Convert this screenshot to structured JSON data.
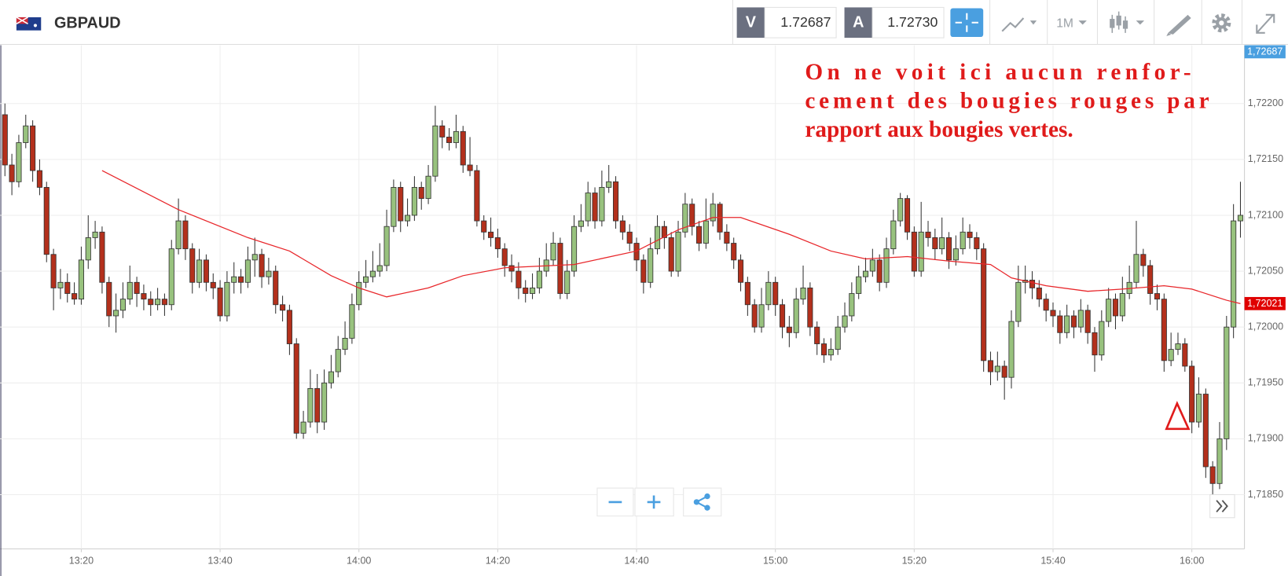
{
  "header": {
    "symbol": "GBPAUD",
    "bid_letter": "V",
    "bid": "1.72687",
    "ask_letter": "A",
    "ask": "1.72730",
    "timeframe": "1M"
  },
  "chart_data": {
    "type": "candlestick",
    "annotation": [
      "On ne voit ici aucun renfor-",
      "cement des bougies rouges par",
      "rapport aux bougies vertes."
    ],
    "up_color": "#98c27e",
    "down_color": "#b3301c",
    "ylim": [
      1.718015,
      1.722522
    ],
    "yticks": [
      {
        "value": 1.7185,
        "label": "1,71850"
      },
      {
        "value": 1.719,
        "label": "1,71900"
      },
      {
        "value": 1.7195,
        "label": "1,71950"
      },
      {
        "value": 1.72,
        "label": "1,72000"
      },
      {
        "value": 1.7205,
        "label": "1,72050"
      },
      {
        "value": 1.721,
        "label": "1,72100"
      },
      {
        "value": 1.7215,
        "label": "1,72150"
      },
      {
        "value": 1.722,
        "label": "1,72200"
      }
    ],
    "xticks": [
      "13:20",
      "13:40",
      "14:00",
      "14:20",
      "14:40",
      "15:00",
      "15:20",
      "15:40",
      "16:00"
    ],
    "grid": true,
    "bid_tag": "1,72687",
    "last_tag": {
      "value": 1.72021,
      "label": "1,72021"
    },
    "x": [
      "13:09",
      "13:10",
      "13:11",
      "13:12",
      "13:13",
      "13:14",
      "13:15",
      "13:16",
      "13:17",
      "13:18",
      "13:19",
      "13:20",
      "13:21",
      "13:22",
      "13:23",
      "13:24",
      "13:25",
      "13:26",
      "13:27",
      "13:28",
      "13:29",
      "13:30",
      "13:31",
      "13:32",
      "13:33",
      "13:34",
      "13:35",
      "13:36",
      "13:37",
      "13:38",
      "13:39",
      "13:40",
      "13:41",
      "13:42",
      "13:43",
      "13:44",
      "13:45",
      "13:46",
      "13:47",
      "13:48",
      "13:49",
      "13:50",
      "13:51",
      "13:52",
      "13:53",
      "13:54",
      "13:55",
      "13:56",
      "13:57",
      "13:58",
      "13:59",
      "14:00",
      "14:01",
      "14:02",
      "14:03",
      "14:04",
      "14:05",
      "14:06",
      "14:07",
      "14:08",
      "14:09",
      "14:10",
      "14:11",
      "14:12",
      "14:13",
      "14:14",
      "14:15",
      "14:16",
      "14:17",
      "14:18",
      "14:19",
      "14:20",
      "14:21",
      "14:22",
      "14:23",
      "14:24",
      "14:25",
      "14:26",
      "14:27",
      "14:28",
      "14:29",
      "14:30",
      "14:31",
      "14:32",
      "14:33",
      "14:34",
      "14:35",
      "14:36",
      "14:37",
      "14:38",
      "14:39",
      "14:40",
      "14:41",
      "14:42",
      "14:43",
      "14:44",
      "14:45",
      "14:46",
      "14:47",
      "14:48",
      "14:49",
      "14:50",
      "14:51",
      "14:52",
      "14:53",
      "14:54",
      "14:55",
      "14:56",
      "14:57",
      "14:58",
      "14:59",
      "15:00",
      "15:01",
      "15:02",
      "15:03",
      "15:04",
      "15:05",
      "15:06",
      "15:07",
      "15:08",
      "15:09",
      "15:10",
      "15:11",
      "15:12",
      "15:13",
      "15:14",
      "15:15",
      "15:16",
      "15:17",
      "15:18",
      "15:19",
      "15:20",
      "15:21",
      "15:22",
      "15:23",
      "15:24",
      "15:25",
      "15:26",
      "15:27",
      "15:28",
      "15:29",
      "15:30",
      "15:31",
      "15:32",
      "15:33",
      "15:34",
      "15:35",
      "15:36",
      "15:37",
      "15:38",
      "15:39",
      "15:40",
      "15:41",
      "15:42",
      "15:43",
      "15:44",
      "15:45",
      "15:46",
      "15:47",
      "15:48",
      "15:49",
      "15:50",
      "15:51",
      "15:52",
      "15:53",
      "15:54",
      "15:55",
      "15:56",
      "15:57",
      "15:58",
      "15:59",
      "16:00",
      "16:01",
      "16:02",
      "16:03",
      "16:04",
      "16:05",
      "16:06",
      "16:07"
    ],
    "ohlc": [
      [
        1.7219,
        1.722,
        1.72135,
        1.72145
      ],
      [
        1.72145,
        1.72155,
        1.72118,
        1.7213
      ],
      [
        1.7213,
        1.72172,
        1.72125,
        1.72165
      ],
      [
        1.72165,
        1.7219,
        1.7216,
        1.7218
      ],
      [
        1.7218,
        1.72185,
        1.7213,
        1.7214
      ],
      [
        1.7214,
        1.7215,
        1.72118,
        1.72125
      ],
      [
        1.72125,
        1.7213,
        1.72058,
        1.72065
      ],
      [
        1.72065,
        1.7207,
        1.72015,
        1.72035
      ],
      [
        1.72035,
        1.72052,
        1.72025,
        1.7204
      ],
      [
        1.7204,
        1.72048,
        1.72022,
        1.7203
      ],
      [
        1.7203,
        1.7204,
        1.7202,
        1.72025
      ],
      [
        1.72025,
        1.72072,
        1.7202,
        1.7206
      ],
      [
        1.7206,
        1.721,
        1.72052,
        1.7208
      ],
      [
        1.7208,
        1.72095,
        1.7207,
        1.72085
      ],
      [
        1.72085,
        1.7209,
        1.7203,
        1.7204
      ],
      [
        1.7204,
        1.72045,
        1.72,
        1.7201
      ],
      [
        1.7201,
        1.7203,
        1.71995,
        1.72015
      ],
      [
        1.72015,
        1.7204,
        1.72008,
        1.72025
      ],
      [
        1.72025,
        1.72055,
        1.7202,
        1.7204
      ],
      [
        1.7204,
        1.72045,
        1.72018,
        1.7203
      ],
      [
        1.7203,
        1.72038,
        1.72015,
        1.72025
      ],
      [
        1.72025,
        1.72032,
        1.7201,
        1.7202
      ],
      [
        1.7202,
        1.72035,
        1.72015,
        1.72025
      ],
      [
        1.72025,
        1.7203,
        1.7201,
        1.7202
      ],
      [
        1.7202,
        1.72078,
        1.72015,
        1.7207
      ],
      [
        1.7207,
        1.72115,
        1.72065,
        1.72095
      ],
      [
        1.72095,
        1.721,
        1.7206,
        1.7207
      ],
      [
        1.7207,
        1.72075,
        1.7203,
        1.7204
      ],
      [
        1.7204,
        1.7207,
        1.72035,
        1.7206
      ],
      [
        1.7206,
        1.72065,
        1.72032,
        1.7204
      ],
      [
        1.7204,
        1.72048,
        1.72025,
        1.72035
      ],
      [
        1.72035,
        1.72042,
        1.72005,
        1.7201
      ],
      [
        1.7201,
        1.7205,
        1.72005,
        1.7204
      ],
      [
        1.7204,
        1.72058,
        1.7203,
        1.72045
      ],
      [
        1.72045,
        1.72052,
        1.7203,
        1.7204
      ],
      [
        1.7204,
        1.72072,
        1.72035,
        1.7206
      ],
      [
        1.7206,
        1.7208,
        1.72045,
        1.72065
      ],
      [
        1.72065,
        1.7207,
        1.72035,
        1.72045
      ],
      [
        1.72045,
        1.72062,
        1.72038,
        1.7205
      ],
      [
        1.7205,
        1.72055,
        1.72012,
        1.7202
      ],
      [
        1.7202,
        1.72028,
        1.72005,
        1.72015
      ],
      [
        1.72015,
        1.7202,
        1.71975,
        1.71985
      ],
      [
        1.71985,
        1.7199,
        1.719,
        1.71905
      ],
      [
        1.71905,
        1.71925,
        1.719,
        1.71915
      ],
      [
        1.71915,
        1.71962,
        1.7191,
        1.71945
      ],
      [
        1.71945,
        1.71958,
        1.71905,
        1.71915
      ],
      [
        1.71915,
        1.71962,
        1.71908,
        1.7195
      ],
      [
        1.7195,
        1.71975,
        1.71945,
        1.7196
      ],
      [
        1.7196,
        1.71992,
        1.71955,
        1.7198
      ],
      [
        1.7198,
        1.72005,
        1.71975,
        1.7199
      ],
      [
        1.7199,
        1.7203,
        1.71985,
        1.7202
      ],
      [
        1.7202,
        1.7205,
        1.72015,
        1.7204
      ],
      [
        1.7204,
        1.7206,
        1.72035,
        1.72045
      ],
      [
        1.72045,
        1.72068,
        1.7204,
        1.7205
      ],
      [
        1.7205,
        1.72075,
        1.72045,
        1.72055
      ],
      [
        1.72055,
        1.72105,
        1.7205,
        1.7209
      ],
      [
        1.7209,
        1.72132,
        1.72085,
        1.72125
      ],
      [
        1.72125,
        1.7213,
        1.72085,
        1.72095
      ],
      [
        1.72095,
        1.72115,
        1.7209,
        1.721
      ],
      [
        1.721,
        1.72135,
        1.72095,
        1.72125
      ],
      [
        1.72125,
        1.7213,
        1.72105,
        1.72115
      ],
      [
        1.72115,
        1.72145,
        1.7211,
        1.72135
      ],
      [
        1.72135,
        1.72198,
        1.7213,
        1.7218
      ],
      [
        1.7218,
        1.72185,
        1.7216,
        1.7217
      ],
      [
        1.7217,
        1.72178,
        1.72158,
        1.72165
      ],
      [
        1.72165,
        1.7219,
        1.7216,
        1.72175
      ],
      [
        1.72175,
        1.7218,
        1.72138,
        1.72145
      ],
      [
        1.72145,
        1.7217,
        1.72135,
        1.7214
      ],
      [
        1.7214,
        1.72145,
        1.7209,
        1.72095
      ],
      [
        1.72095,
        1.721,
        1.72078,
        1.72085
      ],
      [
        1.72085,
        1.72098,
        1.72072,
        1.7208
      ],
      [
        1.7208,
        1.72088,
        1.72062,
        1.7207
      ],
      [
        1.7207,
        1.72075,
        1.72045,
        1.72055
      ],
      [
        1.72055,
        1.72065,
        1.7204,
        1.7205
      ],
      [
        1.7205,
        1.72058,
        1.72025,
        1.72035
      ],
      [
        1.72035,
        1.72042,
        1.72022,
        1.7203
      ],
      [
        1.7203,
        1.72048,
        1.72025,
        1.72035
      ],
      [
        1.72035,
        1.72062,
        1.7203,
        1.7205
      ],
      [
        1.7205,
        1.72075,
        1.72045,
        1.7206
      ],
      [
        1.7206,
        1.72085,
        1.72055,
        1.72075
      ],
      [
        1.72075,
        1.7208,
        1.72025,
        1.7203
      ],
      [
        1.7203,
        1.7206,
        1.72025,
        1.7205
      ],
      [
        1.7205,
        1.721,
        1.72045,
        1.7209
      ],
      [
        1.7209,
        1.7211,
        1.72085,
        1.72095
      ],
      [
        1.72095,
        1.7213,
        1.7209,
        1.7212
      ],
      [
        1.7212,
        1.72125,
        1.72088,
        1.72095
      ],
      [
        1.72095,
        1.7214,
        1.7209,
        1.72125
      ],
      [
        1.72125,
        1.72145,
        1.7212,
        1.7213
      ],
      [
        1.7213,
        1.72135,
        1.72088,
        1.72095
      ],
      [
        1.72095,
        1.721,
        1.72078,
        1.72085
      ],
      [
        1.72085,
        1.72092,
        1.72068,
        1.72075
      ],
      [
        1.72075,
        1.7208,
        1.7205,
        1.7206
      ],
      [
        1.7206,
        1.72065,
        1.7203,
        1.7204
      ],
      [
        1.7204,
        1.7208,
        1.72035,
        1.7207
      ],
      [
        1.7207,
        1.721,
        1.72065,
        1.7209
      ],
      [
        1.7209,
        1.72095,
        1.7207,
        1.7208
      ],
      [
        1.7208,
        1.72085,
        1.72045,
        1.7205
      ],
      [
        1.7205,
        1.72095,
        1.72045,
        1.72085
      ],
      [
        1.72085,
        1.7212,
        1.7208,
        1.7211
      ],
      [
        1.7211,
        1.72115,
        1.72082,
        1.7209
      ],
      [
        1.7209,
        1.72095,
        1.72068,
        1.72075
      ],
      [
        1.72075,
        1.72115,
        1.7207,
        1.72095
      ],
      [
        1.72095,
        1.7212,
        1.7209,
        1.7211
      ],
      [
        1.7211,
        1.72112,
        1.72078,
        1.72085
      ],
      [
        1.72085,
        1.72092,
        1.72068,
        1.72075
      ],
      [
        1.72075,
        1.7208,
        1.72052,
        1.7206
      ],
      [
        1.7206,
        1.72065,
        1.72032,
        1.7204
      ],
      [
        1.7204,
        1.72045,
        1.7201,
        1.7202
      ],
      [
        1.7202,
        1.72025,
        1.71995,
        1.72
      ],
      [
        1.72,
        1.72035,
        1.71995,
        1.7202
      ],
      [
        1.7202,
        1.7205,
        1.72015,
        1.7204
      ],
      [
        1.7204,
        1.72045,
        1.7201,
        1.7202
      ],
      [
        1.7202,
        1.72025,
        1.7199,
        1.72
      ],
      [
        1.72,
        1.7201,
        1.71982,
        1.71995
      ],
      [
        1.71995,
        1.72035,
        1.7199,
        1.72025
      ],
      [
        1.72025,
        1.72055,
        1.7202,
        1.72035
      ],
      [
        1.72035,
        1.7204,
        1.71992,
        1.72
      ],
      [
        1.72,
        1.72005,
        1.71975,
        1.71985
      ],
      [
        1.71985,
        1.7199,
        1.71968,
        1.71975
      ],
      [
        1.71975,
        1.7199,
        1.7197,
        1.7198
      ],
      [
        1.7198,
        1.7201,
        1.71975,
        1.72
      ],
      [
        1.72,
        1.72022,
        1.71995,
        1.7201
      ],
      [
        1.7201,
        1.7204,
        1.72005,
        1.7203
      ],
      [
        1.7203,
        1.72055,
        1.72025,
        1.72045
      ],
      [
        1.72045,
        1.72062,
        1.7204,
        1.7205
      ],
      [
        1.7205,
        1.7207,
        1.72045,
        1.7206
      ],
      [
        1.7206,
        1.72065,
        1.72032,
        1.7204
      ],
      [
        1.7204,
        1.7208,
        1.72035,
        1.7207
      ],
      [
        1.7207,
        1.72105,
        1.72065,
        1.72095
      ],
      [
        1.72095,
        1.7212,
        1.7209,
        1.72115
      ],
      [
        1.72115,
        1.72118,
        1.72078,
        1.72085
      ],
      [
        1.72085,
        1.7209,
        1.72045,
        1.7205
      ],
      [
        1.7205,
        1.72112,
        1.72045,
        1.72085
      ],
      [
        1.72085,
        1.72095,
        1.72072,
        1.7208
      ],
      [
        1.7208,
        1.72088,
        1.7206,
        1.7207
      ],
      [
        1.7207,
        1.72098,
        1.72065,
        1.7208
      ],
      [
        1.7208,
        1.72085,
        1.72052,
        1.7206
      ],
      [
        1.7206,
        1.72082,
        1.72055,
        1.7207
      ],
      [
        1.7207,
        1.72098,
        1.72065,
        1.72085
      ],
      [
        1.72085,
        1.72092,
        1.7207,
        1.7208
      ],
      [
        1.7208,
        1.72085,
        1.7206,
        1.7207
      ],
      [
        1.7207,
        1.72075,
        1.7196,
        1.7197
      ],
      [
        1.7197,
        1.71978,
        1.71948,
        1.7196
      ],
      [
        1.7196,
        1.71978,
        1.71952,
        1.71965
      ],
      [
        1.71965,
        1.7197,
        1.71935,
        1.71955
      ],
      [
        1.71955,
        1.72015,
        1.71945,
        1.72005
      ],
      [
        1.72005,
        1.72055,
        1.72,
        1.7204
      ],
      [
        1.7204,
        1.72055,
        1.7203,
        1.72042
      ],
      [
        1.72042,
        1.7205,
        1.72025,
        1.72035
      ],
      [
        1.72035,
        1.72042,
        1.72018,
        1.72025
      ],
      [
        1.72025,
        1.7203,
        1.72005,
        1.72015
      ],
      [
        1.72015,
        1.72022,
        1.72,
        1.7201
      ],
      [
        1.7201,
        1.72015,
        1.71985,
        1.71995
      ],
      [
        1.71995,
        1.7202,
        1.7199,
        1.7201
      ],
      [
        1.7201,
        1.72015,
        1.7199,
        1.72
      ],
      [
        1.72,
        1.72025,
        1.71995,
        1.72015
      ],
      [
        1.72015,
        1.7202,
        1.71985,
        1.71995
      ],
      [
        1.71995,
        1.72,
        1.7196,
        1.71975
      ],
      [
        1.71975,
        1.72015,
        1.7197,
        1.72005
      ],
      [
        1.72005,
        1.72035,
        1.72,
        1.72025
      ],
      [
        1.72025,
        1.7203,
        1.71998,
        1.7201
      ],
      [
        1.7201,
        1.72045,
        1.72005,
        1.7203
      ],
      [
        1.7203,
        1.72055,
        1.72025,
        1.7204
      ],
      [
        1.7204,
        1.72095,
        1.72035,
        1.72065
      ],
      [
        1.72065,
        1.7207,
        1.72045,
        1.72055
      ],
      [
        1.72055,
        1.7206,
        1.7202,
        1.7203
      ],
      [
        1.7203,
        1.72038,
        1.72015,
        1.72025
      ],
      [
        1.72025,
        1.7203,
        1.7196,
        1.7197
      ],
      [
        1.7197,
        1.71995,
        1.71965,
        1.7198
      ],
      [
        1.7198,
        1.71995,
        1.71975,
        1.71985
      ],
      [
        1.71985,
        1.7199,
        1.7196,
        1.71965
      ],
      [
        1.71965,
        1.7197,
        1.71905,
        1.71915
      ],
      [
        1.71915,
        1.71955,
        1.7191,
        1.7194
      ],
      [
        1.7194,
        1.71945,
        1.71865,
        1.71875
      ],
      [
        1.71875,
        1.7188,
        1.7185,
        1.7186
      ],
      [
        1.7186,
        1.71915,
        1.71855,
        1.719
      ],
      [
        1.719,
        1.7201,
        1.7189,
        1.72
      ],
      [
        1.72,
        1.7211,
        1.7199,
        1.72095
      ],
      [
        1.72095,
        1.7213,
        1.7208,
        1.721
      ]
    ],
    "ma": {
      "color": "#e8262a",
      "x": [
        "13:23",
        "13:34",
        "13:44",
        "13:50",
        "13:56",
        "14:00",
        "14:04",
        "14:10",
        "14:15",
        "14:21",
        "14:31",
        "14:40",
        "14:46",
        "14:51",
        "14:55",
        "15:02",
        "15:08",
        "15:13",
        "15:19",
        "15:25",
        "15:31",
        "15:34",
        "15:39",
        "15:45",
        "15:50",
        "15:56",
        "16:00",
        "16:05",
        "16:07"
      ],
      "values": [
        1.7214,
        1.72105,
        1.7208,
        1.72068,
        1.72046,
        1.72035,
        1.72027,
        1.72035,
        1.72046,
        1.72053,
        1.72056,
        1.72068,
        1.72087,
        1.72098,
        1.72098,
        1.72083,
        1.72068,
        1.72061,
        1.72063,
        1.72059,
        1.72056,
        1.72044,
        1.72037,
        1.72032,
        1.72034,
        1.72037,
        1.72034,
        1.72024,
        1.72021
      ]
    }
  }
}
